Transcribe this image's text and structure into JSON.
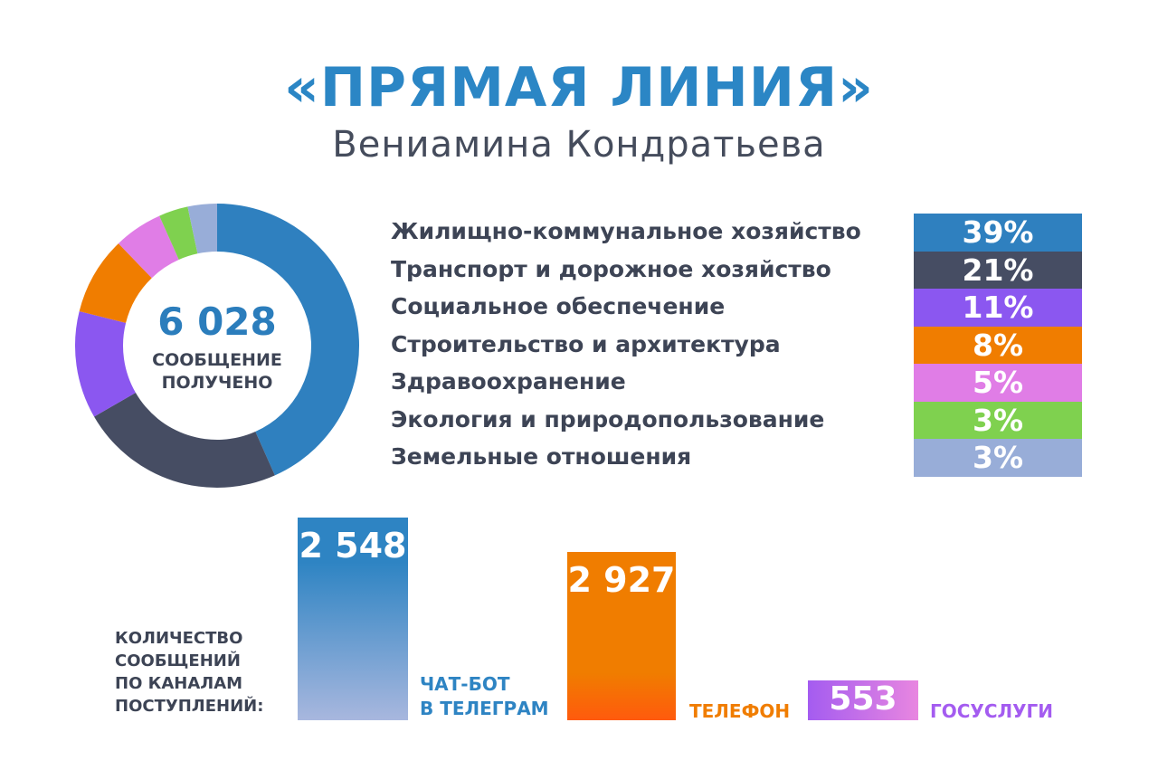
{
  "header": {
    "title": "«ПРЯМАЯ ЛИНИЯ»",
    "subtitle": "Вениамина Кондратьева"
  },
  "donut": {
    "total_value": "6 028",
    "caption_line1": "СООБЩЕНИЕ",
    "caption_line2": "ПОЛУЧЕНО"
  },
  "bars_caption": [
    "КОЛИЧЕСТВО",
    "СООБЩЕНИЙ",
    "ПО КАНАЛАМ",
    "ПОСТУПЛЕНИЙ:"
  ],
  "channel_labels": {
    "telegram_line1": "ЧАТ-БОТ",
    "telegram_line2": "В ТЕЛЕГРАМ",
    "phone": "ТЕЛЕФОН",
    "gosuslugi": "ГОСУСЛУГИ"
  },
  "chart_data": [
    {
      "type": "pie",
      "categories": [
        "Жилищно-коммунальное хозяйство",
        "Транспорт и дорожное хозяйство",
        "Социальное обеспечение",
        "Строительство и архитектура",
        "Здравоохранение",
        "Экология и природопользование",
        "Земельные отношения"
      ],
      "values": [
        39,
        21,
        11,
        8,
        5,
        3,
        3
      ],
      "labels": [
        "39%",
        "21%",
        "11%",
        "8%",
        "5%",
        "3%",
        "3%"
      ],
      "colors": [
        "#2f80bf",
        "#464d63",
        "#8b57f0",
        "#f07d00",
        "#e07de6",
        "#7fd14f",
        "#98add8"
      ]
    },
    {
      "type": "bar",
      "categories": [
        "ЧАТ-БОТ В ТЕЛЕГРАМ",
        "ТЕЛЕФОН",
        "ГОСУСЛУГИ"
      ],
      "values": [
        2548,
        2927,
        553
      ],
      "labels": [
        "2 548",
        "2 927",
        "553"
      ],
      "colors": [
        "#2e84c3",
        "#f07d00",
        "#a45cf0"
      ]
    }
  ]
}
